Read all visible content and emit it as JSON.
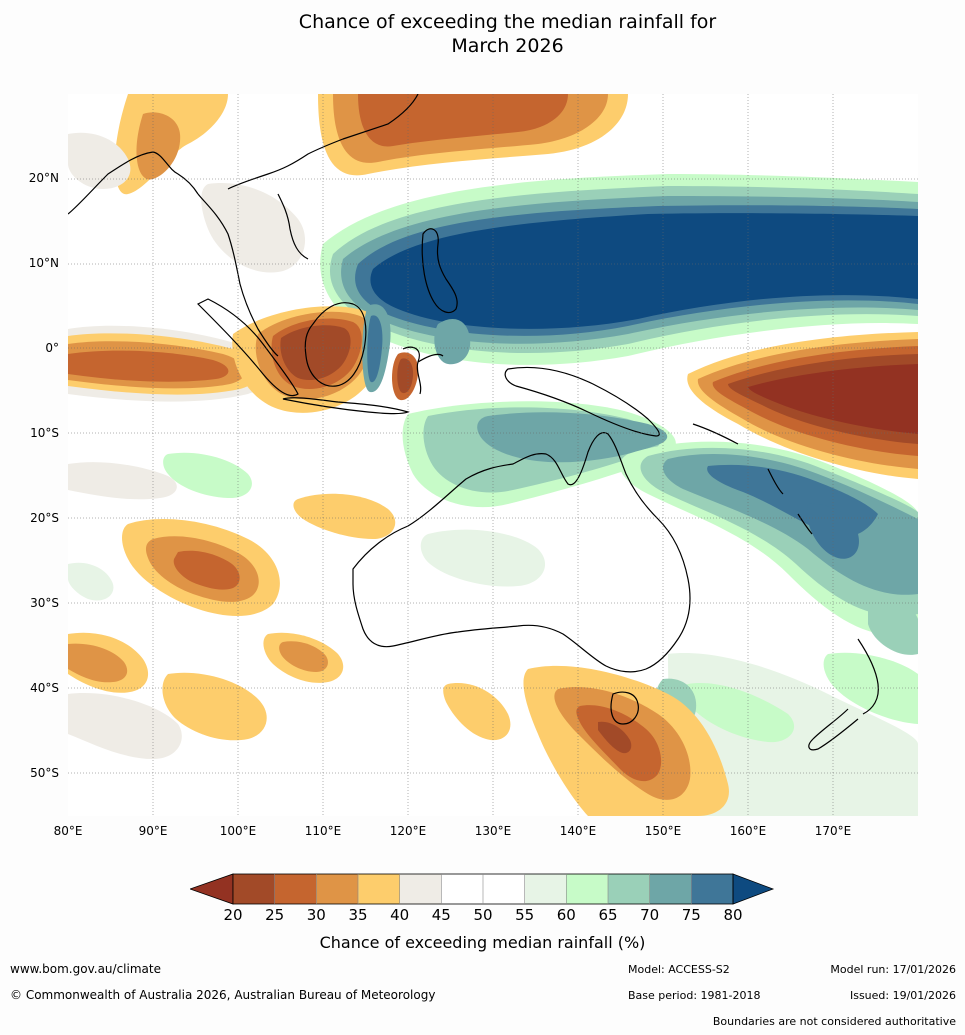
{
  "title": {
    "line1": "Chance of exceeding the median rainfall for",
    "line2": "March 2026"
  },
  "map": {
    "lat_labels": [
      "20°N",
      "10°N",
      "0°",
      "10°S",
      "20°S",
      "30°S",
      "40°S",
      "50°S"
    ],
    "lon_labels": [
      "80°E",
      "90°E",
      "100°E",
      "110°E",
      "120°E",
      "130°E",
      "140°E",
      "150°E",
      "160°E",
      "170°E"
    ]
  },
  "colorbar": {
    "ticks": [
      "20",
      "25",
      "30",
      "35",
      "40",
      "45",
      "50",
      "55",
      "60",
      "65",
      "70",
      "75",
      "80"
    ],
    "colors": [
      "#a24a28",
      "#c5652f",
      "#df9446",
      "#fdcd6c",
      "#efece6",
      "#ffffff",
      "#ffffff",
      "#e7f4e6",
      "#c7fbc8",
      "#9ad0b8",
      "#6ea6a7",
      "#3f7698"
    ],
    "under_color": "#933222",
    "over_color": "#0e4a80",
    "label": "Chance of exceeding median rainfall (%)"
  },
  "footer": {
    "website": "www.bom.gov.au/climate",
    "copyright": "© Commonwealth of Australia 2026, Australian Bureau of Meteorology",
    "model": "Model: ACCESS-S2",
    "base_period": "Base period: 1981-2018",
    "model_run": "Model run: 17/01/2026",
    "issued": "Issued: 19/01/2026",
    "disclaimer": "Boundaries are not considered authoritative"
  }
}
